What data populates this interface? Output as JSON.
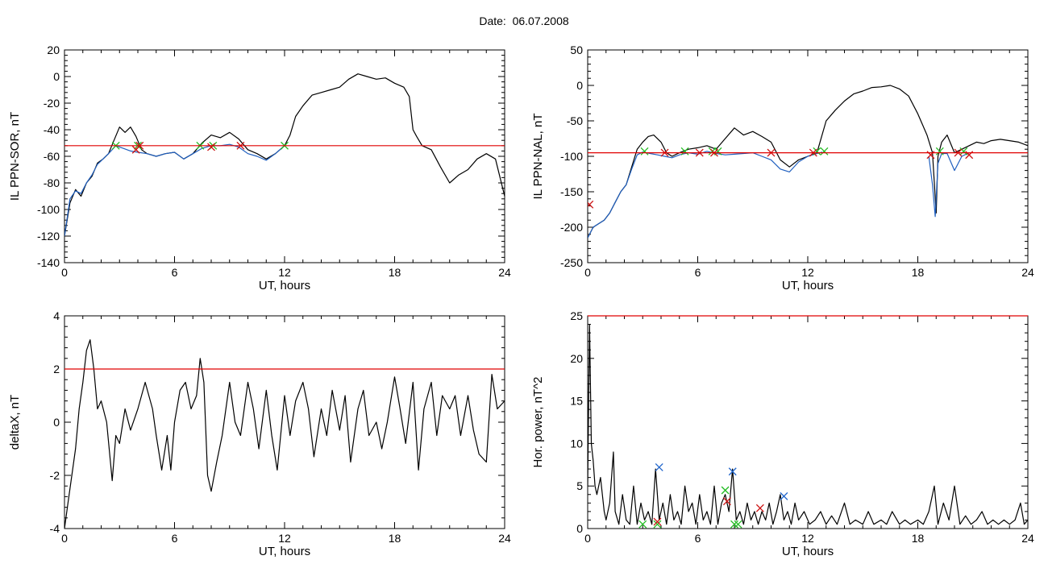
{
  "header": {
    "date_label": "Date:",
    "date_value": "06.07.2008"
  },
  "colors": {
    "raw_line": "#000000",
    "fit_line": "#1f5fbf",
    "threshold": "#e00000",
    "marker_green": "#22bb22",
    "marker_red": "#cc1111",
    "marker_blue": "#2266cc"
  },
  "chart_data": [
    {
      "id": "sor",
      "type": "line",
      "title": "",
      "xlabel": "UT, hours",
      "ylabel": "IL PPN-SOR, nT",
      "xlim": [
        0,
        24
      ],
      "ylim": [
        -140,
        20
      ],
      "xticks": [
        0,
        6,
        12,
        18,
        24
      ],
      "yticks": [
        -140,
        -120,
        -100,
        -80,
        -60,
        -40,
        -20,
        0,
        20
      ],
      "threshold": -52,
      "series": [
        {
          "style": "raw",
          "x": [
            0,
            0.3,
            0.6,
            0.9,
            1.2,
            1.5,
            1.8,
            2.1,
            2.4,
            2.7,
            3.0,
            3.3,
            3.6,
            3.9,
            4.2,
            4.5,
            5,
            5.5,
            6,
            6.5,
            7,
            7.5,
            8,
            8.5,
            9,
            9.5,
            10,
            10.5,
            11,
            11.5,
            12,
            12.3,
            12.6,
            13,
            13.5,
            14,
            14.5,
            15,
            15.5,
            16,
            16.5,
            17,
            17.5,
            18,
            18.5,
            18.8,
            19.0,
            19.2,
            19.5,
            20,
            20.5,
            21,
            21.5,
            22,
            22.5,
            23,
            23.5,
            24
          ],
          "y": [
            -120,
            -95,
            -85,
            -90,
            -80,
            -75,
            -65,
            -62,
            -58,
            -48,
            -38,
            -42,
            -38,
            -45,
            -55,
            -58,
            -60,
            -58,
            -57,
            -62,
            -58,
            -50,
            -44,
            -46,
            -42,
            -47,
            -55,
            -58,
            -62,
            -58,
            -52,
            -44,
            -30,
            -22,
            -14,
            -12,
            -10,
            -8,
            -2,
            2,
            0,
            -2,
            -1,
            -5,
            -8,
            -15,
            -40,
            -45,
            -52,
            -55,
            -68,
            -80,
            -74,
            -70,
            -62,
            -58,
            -62,
            -90
          ]
        },
        {
          "style": "fit",
          "x": [
            0,
            0.3,
            0.6,
            0.9,
            1.2,
            1.5,
            1.8,
            2.1,
            2.4,
            2.8,
            3.2,
            3.6,
            4.0,
            4.5,
            5,
            5.5,
            6,
            6.5,
            7,
            7.5,
            8,
            8.5,
            9,
            9.5,
            10,
            10.5,
            11,
            11.5,
            12
          ],
          "y": [
            -120,
            -92,
            -86,
            -88,
            -80,
            -74,
            -66,
            -62,
            -58,
            -52,
            -54,
            -56,
            -57,
            -58,
            -60,
            -58,
            -57,
            -62,
            -58,
            -54,
            -52,
            -52,
            -51,
            -53,
            -58,
            -60,
            -63,
            -58,
            -52
          ]
        }
      ],
      "markers": {
        "green": {
          "x": [
            2.8,
            4.0,
            7.4,
            8.1,
            12.0
          ],
          "y": [
            -52,
            -52,
            -52,
            -52,
            -52
          ]
        },
        "red": {
          "x": [
            3.9,
            4.1,
            8.0,
            9.6
          ],
          "y": [
            -55,
            -52,
            -53,
            -52
          ]
        }
      }
    },
    {
      "id": "nal",
      "type": "line",
      "title": "",
      "xlabel": "UT, hours",
      "ylabel": "IL PPN-NAL, nT",
      "xlim": [
        0,
        24
      ],
      "ylim": [
        -250,
        50
      ],
      "xticks": [
        0,
        6,
        12,
        18,
        24
      ],
      "yticks": [
        -250,
        -200,
        -150,
        -100,
        -50,
        0,
        50
      ],
      "threshold": -95,
      "series": [
        {
          "style": "raw",
          "x": [
            0,
            0.3,
            0.6,
            0.9,
            1.2,
            1.5,
            1.8,
            2.1,
            2.4,
            2.7,
            3.0,
            3.3,
            3.6,
            4.0,
            4.3,
            4.6,
            5,
            5.5,
            6,
            6.5,
            7,
            7.5,
            8,
            8.5,
            9,
            9.5,
            10,
            10.5,
            11,
            11.5,
            12,
            12.5,
            13,
            13.5,
            14,
            14.5,
            15,
            15.5,
            16,
            16.5,
            17,
            17.5,
            18,
            18.5,
            18.8,
            19.0,
            19.1,
            19.3,
            19.6,
            20,
            20.4,
            20.8,
            21.2,
            21.6,
            22,
            22.5,
            23,
            23.5,
            24
          ],
          "y": [
            -215,
            -200,
            -195,
            -190,
            -180,
            -165,
            -150,
            -140,
            -115,
            -90,
            -80,
            -72,
            -70,
            -80,
            -95,
            -100,
            -95,
            -90,
            -88,
            -85,
            -90,
            -75,
            -60,
            -70,
            -65,
            -72,
            -80,
            -105,
            -115,
            -105,
            -100,
            -95,
            -50,
            -35,
            -22,
            -12,
            -8,
            -3,
            -2,
            0,
            -5,
            -15,
            -40,
            -70,
            -95,
            -180,
            -100,
            -80,
            -70,
            -95,
            -90,
            -85,
            -80,
            -82,
            -78,
            -76,
            -78,
            -80,
            -85
          ]
        },
        {
          "style": "fit",
          "x": [
            0,
            0.3,
            0.6,
            0.9,
            1.2,
            1.5,
            1.8,
            2.1,
            2.4,
            2.7,
            3.0,
            3.4,
            3.8,
            4.2,
            4.6,
            5,
            5.5,
            6,
            6.5,
            7,
            7.5,
            8,
            8.5,
            9,
            9.5,
            10,
            10.5,
            11,
            11.5,
            12,
            12.5,
            12.8
          ],
          "y": [
            -215,
            -200,
            -195,
            -190,
            -180,
            -165,
            -150,
            -140,
            -118,
            -98,
            -94,
            -96,
            -98,
            -100,
            -102,
            -98,
            -95,
            -97,
            -93,
            -96,
            -98,
            -97,
            -96,
            -95,
            -100,
            -105,
            -118,
            -122,
            -108,
            -100,
            -96,
            -94
          ]
        },
        {
          "style": "fit",
          "x": [
            18.6,
            18.8,
            18.95,
            19.1,
            19.3,
            19.6,
            20.0,
            20.4,
            20.8
          ],
          "y": [
            -100,
            -140,
            -185,
            -110,
            -96,
            -96,
            -120,
            -100,
            -95
          ]
        }
      ],
      "markers": {
        "green": {
          "x": [
            3.1,
            5.3,
            6.8,
            7.1,
            12.5,
            12.9,
            19.2,
            20.5
          ],
          "y": [
            -93,
            -93,
            -93,
            -93,
            -93,
            -93,
            -93,
            -93
          ]
        },
        "red": {
          "x": [
            0.1,
            4.2,
            6.1,
            6.9,
            10.0,
            12.3,
            18.7,
            20.2,
            20.8
          ],
          "y": [
            -168,
            -95,
            -95,
            -95,
            -95,
            -95,
            -98,
            -95,
            -98
          ]
        }
      }
    },
    {
      "id": "deltax",
      "type": "line",
      "title": "",
      "xlabel": "UT, hours",
      "ylabel": "deltaX, nT",
      "xlim": [
        0,
        24
      ],
      "ylim": [
        -4,
        4
      ],
      "xticks": [
        0,
        6,
        12,
        18,
        24
      ],
      "yticks": [
        -4,
        -2,
        0,
        2,
        4
      ],
      "threshold": 2,
      "series": [
        {
          "style": "raw",
          "x": [
            0,
            0.2,
            0.4,
            0.6,
            0.8,
            1.0,
            1.2,
            1.4,
            1.6,
            1.8,
            2.0,
            2.3,
            2.6,
            2.8,
            3.0,
            3.3,
            3.6,
            4.0,
            4.4,
            4.8,
            5.0,
            5.3,
            5.6,
            5.8,
            6.0,
            6.3,
            6.6,
            6.9,
            7.2,
            7.4,
            7.6,
            7.8,
            8.0,
            8.3,
            8.6,
            9.0,
            9.3,
            9.6,
            10.0,
            10.3,
            10.6,
            11.0,
            11.3,
            11.6,
            12.0,
            12.3,
            12.6,
            13.0,
            13.3,
            13.6,
            14.0,
            14.3,
            14.6,
            15.0,
            15.3,
            15.6,
            16.0,
            16.3,
            16.6,
            17.0,
            17.3,
            17.6,
            18.0,
            18.3,
            18.6,
            19.0,
            19.3,
            19.6,
            20.0,
            20.3,
            20.6,
            21.0,
            21.3,
            21.6,
            22.0,
            22.3,
            22.6,
            23.0,
            23.3,
            23.6,
            24.0
          ],
          "y": [
            -4,
            -3,
            -2,
            -1,
            0.5,
            1.5,
            2.7,
            3.1,
            2.0,
            0.5,
            0.8,
            0,
            -2.2,
            -0.5,
            -0.8,
            0.5,
            -0.3,
            0.5,
            1.5,
            0.5,
            -0.5,
            -1.8,
            -0.5,
            -1.8,
            0,
            1.2,
            1.5,
            0.5,
            1.0,
            2.4,
            1.5,
            -2.0,
            -2.6,
            -1.5,
            -0.5,
            1.5,
            0,
            -0.5,
            1.5,
            0.5,
            -1.0,
            1.2,
            -0.5,
            -1.8,
            1.0,
            -0.5,
            0.8,
            1.5,
            0.5,
            -1.3,
            0.5,
            -0.5,
            1.2,
            -0.3,
            1.0,
            -1.5,
            0.5,
            1.2,
            -0.5,
            0,
            -1.0,
            0,
            1.7,
            0.5,
            -0.8,
            1.5,
            -1.8,
            0.5,
            1.5,
            -0.5,
            1.0,
            0.5,
            1.0,
            -0.5,
            1.0,
            -0.3,
            -1.2,
            -1.5,
            1.8,
            0.5,
            0.8
          ]
        }
      ],
      "markers": {}
    },
    {
      "id": "power",
      "type": "line",
      "title": "",
      "xlabel": "UT, hours",
      "ylabel": "Hor. power, nT^2",
      "xlim": [
        0,
        24
      ],
      "ylim": [
        0,
        25
      ],
      "xticks": [
        0,
        6,
        12,
        18,
        24
      ],
      "yticks": [
        0,
        5,
        10,
        15,
        20,
        25
      ],
      "threshold": 25,
      "series": [
        {
          "style": "raw",
          "x": [
            0,
            0.1,
            0.2,
            0.3,
            0.4,
            0.5,
            0.7,
            0.9,
            1.0,
            1.2,
            1.4,
            1.5,
            1.7,
            1.9,
            2.1,
            2.3,
            2.5,
            2.7,
            2.9,
            3.1,
            3.3,
            3.5,
            3.7,
            3.9,
            4.1,
            4.3,
            4.5,
            4.7,
            4.9,
            5.1,
            5.3,
            5.5,
            5.7,
            5.9,
            6.1,
            6.3,
            6.5,
            6.7,
            6.9,
            7.1,
            7.3,
            7.5,
            7.7,
            7.9,
            8.1,
            8.3,
            8.5,
            8.7,
            8.9,
            9.1,
            9.3,
            9.5,
            9.7,
            9.9,
            10.1,
            10.3,
            10.5,
            10.7,
            10.9,
            11.1,
            11.3,
            11.5,
            11.8,
            12.1,
            12.4,
            12.7,
            13.0,
            13.3,
            13.6,
            14.0,
            14.3,
            14.6,
            15.0,
            15.3,
            15.6,
            16.0,
            16.3,
            16.6,
            17.0,
            17.3,
            17.6,
            18.0,
            18.3,
            18.6,
            18.9,
            19.1,
            19.4,
            19.7,
            20.0,
            20.3,
            20.6,
            20.9,
            21.2,
            21.5,
            21.8,
            22.1,
            22.4,
            22.7,
            23.0,
            23.3,
            23.6,
            23.8,
            24.0
          ],
          "y": [
            5,
            24,
            10,
            8,
            5,
            4,
            6,
            2,
            1,
            3,
            9,
            2,
            0.5,
            4,
            1,
            0.5,
            5,
            0.5,
            3,
            1,
            2,
            0.5,
            7,
            1,
            3,
            0.5,
            4,
            1,
            2,
            0.5,
            5,
            2,
            3,
            0.5,
            4,
            1,
            2,
            0.5,
            5,
            0.5,
            3,
            4,
            2,
            7,
            1,
            2,
            0.5,
            3,
            1,
            2,
            0.5,
            2,
            1,
            3,
            0.5,
            2,
            4,
            1,
            2,
            0.5,
            3,
            1,
            2,
            0.5,
            1,
            2,
            0.5,
            1.5,
            0.5,
            3,
            0.5,
            1,
            0.5,
            2,
            0.5,
            1,
            0.5,
            2,
            0.5,
            1,
            0.5,
            1,
            0.5,
            2,
            5,
            0.5,
            3,
            1,
            5,
            0.5,
            1.5,
            0.5,
            1,
            2,
            0.5,
            1,
            0.5,
            1,
            0.5,
            1,
            3,
            0.5,
            1
          ]
        }
      ],
      "markers": {
        "green": {
          "x": [
            3.0,
            3.8,
            7.5,
            8.0,
            8.2
          ],
          "y": [
            0.5,
            0.5,
            4.5,
            0.5,
            0.5
          ]
        },
        "red": {
          "x": [
            3.8,
            7.6,
            9.4
          ],
          "y": [
            0.8,
            3.2,
            2.4
          ]
        },
        "blue": {
          "x": [
            3.9,
            7.9,
            10.7
          ],
          "y": [
            7.2,
            6.7,
            3.8
          ]
        }
      }
    }
  ]
}
